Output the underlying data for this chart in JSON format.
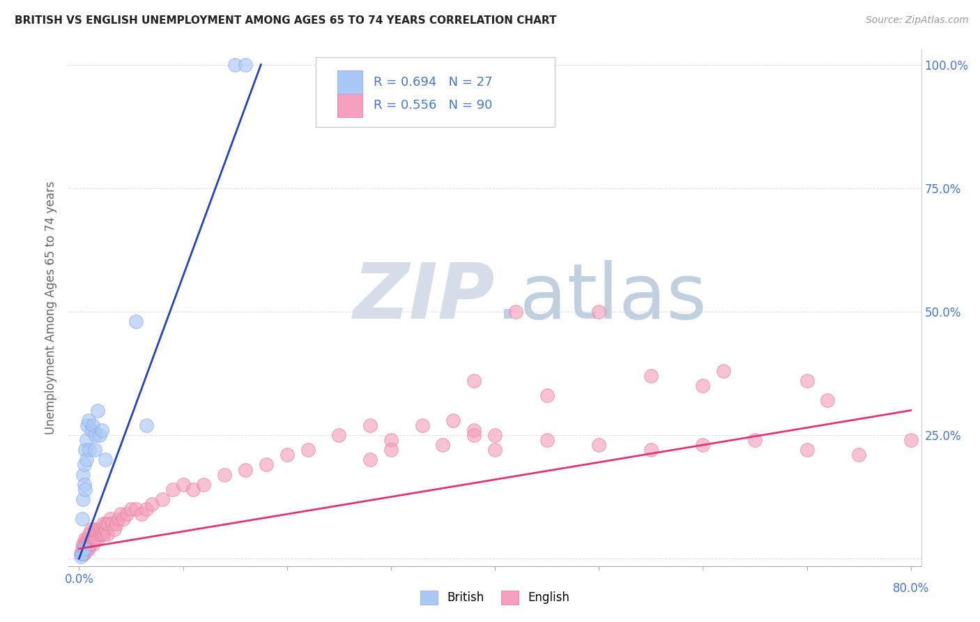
{
  "title": "BRITISH VS ENGLISH UNEMPLOYMENT AMONG AGES 65 TO 74 YEARS CORRELATION CHART",
  "source": "Source: ZipAtlas.com",
  "ylabel": "Unemployment Among Ages 65 to 74 years",
  "right_ytick_labels": [
    "",
    "25.0%",
    "50.0%",
    "75.0%",
    "100.0%"
  ],
  "xlim_min": 0.0,
  "xlim_max": 0.8,
  "ylim_min": 0.0,
  "ylim_max": 1.0,
  "legend_british_R": "0.694",
  "legend_british_N": "27",
  "legend_english_R": "0.556",
  "legend_english_N": "90",
  "british_color": "#aac8f5",
  "british_edge": "#88aaee",
  "british_line_color": "#2244bb",
  "english_color": "#f5a0be",
  "english_edge": "#e080a0",
  "english_line_color": "#e03575",
  "watermark_zip_color": "#d0ddf0",
  "watermark_atlas_color": "#b8cce0",
  "title_color": "#222222",
  "source_color": "#999999",
  "label_color": "#4477cc",
  "axis_color": "#666666",
  "grid_color": "#dddddd",
  "british_x": [
    0.002,
    0.003,
    0.003,
    0.004,
    0.004,
    0.005,
    0.005,
    0.005,
    0.006,
    0.006,
    0.007,
    0.007,
    0.008,
    0.009,
    0.01,
    0.012,
    0.013,
    0.015,
    0.016,
    0.018,
    0.02,
    0.022,
    0.025,
    0.055,
    0.065,
    0.15,
    0.16
  ],
  "british_y": [
    0.005,
    0.01,
    0.08,
    0.12,
    0.17,
    0.02,
    0.15,
    0.19,
    0.14,
    0.22,
    0.2,
    0.24,
    0.27,
    0.28,
    0.22,
    0.26,
    0.27,
    0.22,
    0.25,
    0.3,
    0.25,
    0.26,
    0.2,
    0.48,
    0.27,
    1.0,
    1.0
  ],
  "english_x": [
    0.002,
    0.003,
    0.003,
    0.004,
    0.004,
    0.005,
    0.005,
    0.005,
    0.006,
    0.006,
    0.007,
    0.007,
    0.008,
    0.008,
    0.009,
    0.009,
    0.01,
    0.01,
    0.011,
    0.012,
    0.012,
    0.013,
    0.014,
    0.015,
    0.015,
    0.016,
    0.017,
    0.018,
    0.019,
    0.02,
    0.021,
    0.022,
    0.023,
    0.024,
    0.025,
    0.026,
    0.027,
    0.028,
    0.03,
    0.032,
    0.034,
    0.036,
    0.038,
    0.04,
    0.043,
    0.046,
    0.05,
    0.055,
    0.06,
    0.065,
    0.07,
    0.08,
    0.09,
    0.1,
    0.11,
    0.12,
    0.14,
    0.16,
    0.18,
    0.2,
    0.22,
    0.25,
    0.28,
    0.3,
    0.33,
    0.36,
    0.38,
    0.4,
    0.28,
    0.3,
    0.35,
    0.38,
    0.4,
    0.45,
    0.5,
    0.55,
    0.6,
    0.65,
    0.7,
    0.75,
    0.8,
    0.38,
    0.45,
    0.6,
    0.72,
    0.42,
    0.5,
    0.55,
    0.62,
    0.7
  ],
  "english_y": [
    0.01,
    0.01,
    0.02,
    0.01,
    0.03,
    0.01,
    0.02,
    0.03,
    0.02,
    0.04,
    0.02,
    0.03,
    0.02,
    0.04,
    0.02,
    0.04,
    0.03,
    0.05,
    0.03,
    0.04,
    0.06,
    0.04,
    0.03,
    0.04,
    0.06,
    0.04,
    0.05,
    0.04,
    0.06,
    0.05,
    0.06,
    0.05,
    0.07,
    0.05,
    0.06,
    0.07,
    0.05,
    0.07,
    0.08,
    0.07,
    0.06,
    0.07,
    0.08,
    0.09,
    0.08,
    0.09,
    0.1,
    0.1,
    0.09,
    0.1,
    0.11,
    0.12,
    0.14,
    0.15,
    0.14,
    0.15,
    0.17,
    0.18,
    0.19,
    0.21,
    0.22,
    0.25,
    0.27,
    0.24,
    0.27,
    0.28,
    0.26,
    0.25,
    0.2,
    0.22,
    0.23,
    0.25,
    0.22,
    0.24,
    0.23,
    0.22,
    0.23,
    0.24,
    0.22,
    0.21,
    0.24,
    0.36,
    0.33,
    0.35,
    0.32,
    0.5,
    0.5,
    0.37,
    0.38,
    0.36
  ],
  "brit_line_x0": 0.0,
  "brit_line_y0": 0.0,
  "brit_line_x1": 0.175,
  "brit_line_y1": 1.0,
  "eng_line_x0": 0.0,
  "eng_line_y0": 0.02,
  "eng_line_x1": 0.8,
  "eng_line_y1": 0.3
}
